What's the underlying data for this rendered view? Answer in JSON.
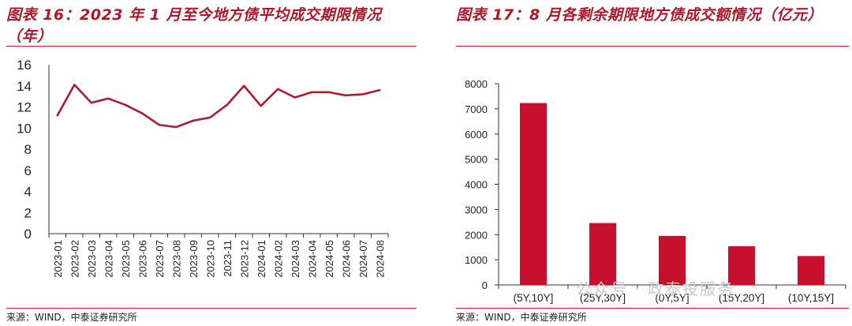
{
  "left": {
    "title": "图表 16：2023 年 1 月至今地方债平均成交期限情况（年）",
    "source": "来源：WIND，中泰证券研究所"
  },
  "right": {
    "title": "图表 17：8 月各剩余期限地方债成交额情况（亿元）",
    "source": "来源：WIND，中泰证券研究所",
    "watermark": "公众号 · 政泰投服务"
  },
  "colors": {
    "accent": "#b0182a",
    "line": "#b31b2c",
    "bar": "#c8102e"
  },
  "chart_data": [
    {
      "type": "line",
      "title": "图表 16：2023 年 1 月至今地方债平均成交期限情况（年）",
      "xlabel": "",
      "ylabel": "",
      "categories": [
        "2023-01",
        "2023-02",
        "2023-03",
        "2023-04",
        "2023-05",
        "2023-06",
        "2023-07",
        "2023-08",
        "2023-09",
        "2023-10",
        "2023-11",
        "2023-12",
        "2024-01",
        "2024-02",
        "2024-03",
        "2024-04",
        "2024-05",
        "2024-06",
        "2024-07",
        "2024-08"
      ],
      "series": [
        {
          "values": [
            11.2,
            14.1,
            12.4,
            12.8,
            12.2,
            11.4,
            10.3,
            10.1,
            10.7,
            11.0,
            12.2,
            14.0,
            12.1,
            13.7,
            12.9,
            13.4,
            13.4,
            13.1,
            13.2,
            13.6
          ]
        }
      ],
      "ylim": [
        0,
        16
      ],
      "yticks": [
        0,
        2,
        4,
        6,
        8,
        10,
        12,
        14,
        16
      ],
      "grid": false
    },
    {
      "type": "bar",
      "title": "图表 17：8 月各剩余期限地方债成交额情况（亿元）",
      "xlabel": "",
      "ylabel": "",
      "categories": [
        "(5Y,10Y]",
        "(25Y,30Y]",
        "(0Y,5Y]",
        "(15Y,20Y]",
        "(10Y,15Y]"
      ],
      "values": [
        7230,
        2460,
        1950,
        1540,
        1150
      ],
      "ylim": [
        0,
        8000
      ],
      "yticks": [
        0,
        1000,
        2000,
        3000,
        4000,
        5000,
        6000,
        7000,
        8000
      ],
      "grid": false
    }
  ]
}
